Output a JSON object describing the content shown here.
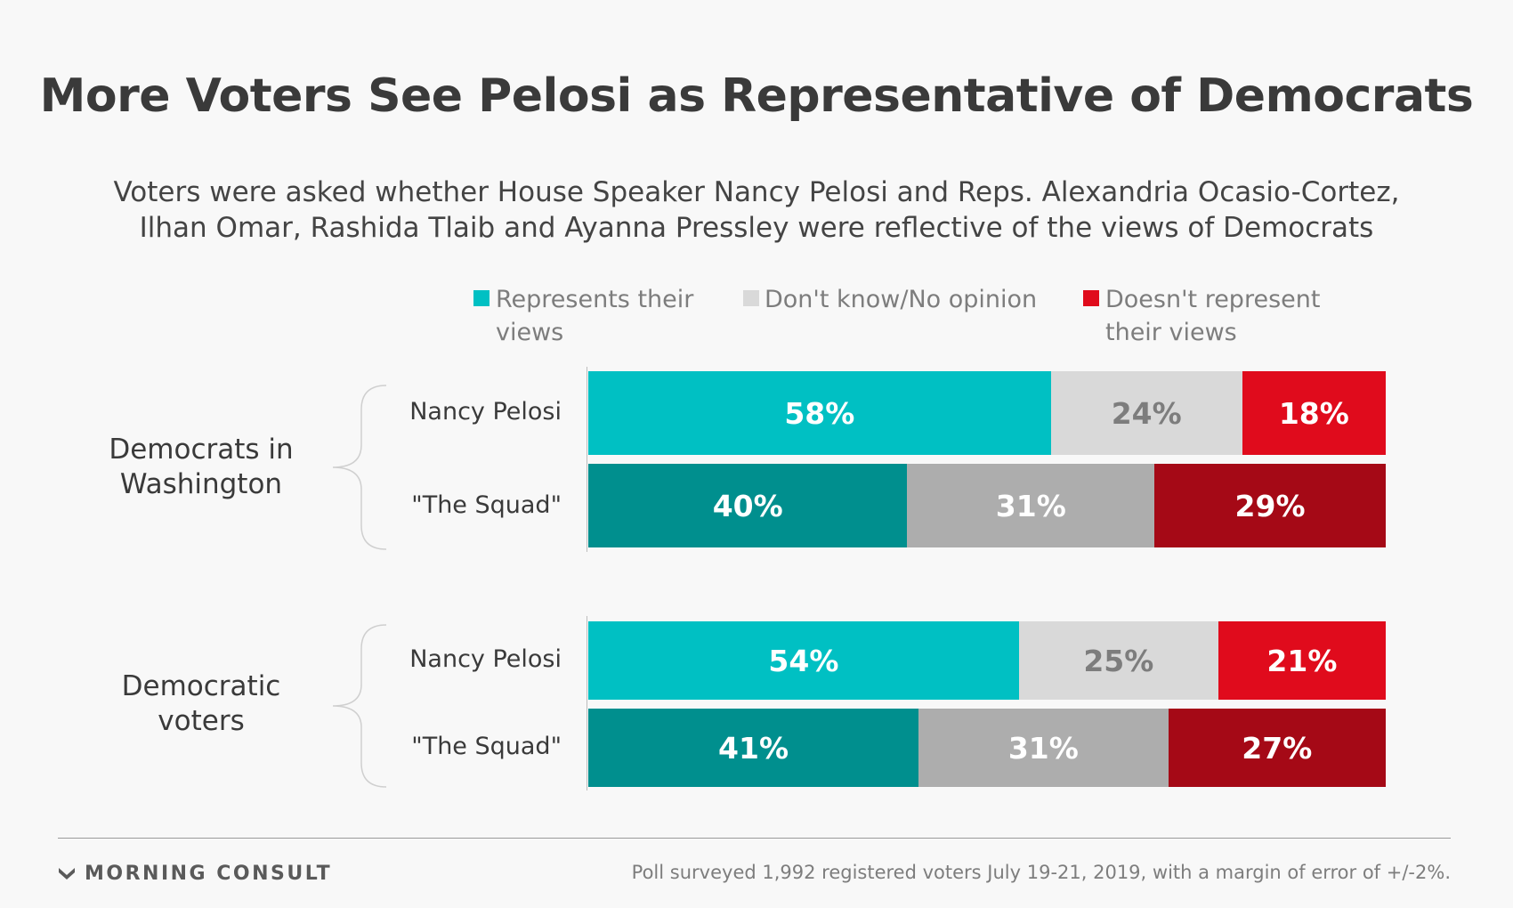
{
  "title": "More Voters See Pelosi as Representative of Democrats",
  "subtitle_lines": [
    "Voters were asked whether House Speaker Nancy Pelosi and Reps. Alexandria Ocasio-Cortez,",
    "Ilhan Omar, Rashida Tlaib and Ayanna Pressley were reflective of the views of Democrats"
  ],
  "legend": [
    {
      "lines": [
        "Represents their",
        "views"
      ],
      "color": "#00c0c3"
    },
    {
      "lines": [
        "Don't know/No opinion"
      ],
      "color": "#d9d9d9"
    },
    {
      "lines": [
        "Doesn't represent",
        "their views"
      ],
      "color": "#e00b1c"
    }
  ],
  "footer": {
    "logo": "MORNING CONSULT",
    "source": "Poll surveyed 1,992 registered voters July 19-21, 2019, with a margin of error of +/-2%."
  },
  "chart_data": {
    "type": "bar",
    "orientation": "horizontal",
    "stacked": true,
    "unit": "%",
    "series_names": [
      "Represents their views",
      "Don't know/No opinion",
      "Doesn't represent their views"
    ],
    "groups": [
      {
        "label_lines": [
          "Democrats in",
          "Washington"
        ],
        "rows": [
          {
            "label": "Nancy Pelosi",
            "values": [
              58,
              24,
              18
            ],
            "labels": [
              "58%",
              "24%",
              "18%"
            ],
            "colors": [
              "#00c0c3",
              "#d9d9d9",
              "#e00b1c"
            ]
          },
          {
            "label": "\"The Squad\"",
            "values": [
              40,
              31,
              29
            ],
            "labels": [
              "40%",
              "31%",
              "29%"
            ],
            "colors": [
              "#008f8e",
              "#adadad",
              "#a50916"
            ]
          }
        ]
      },
      {
        "label_lines": [
          "Democratic",
          "voters"
        ],
        "rows": [
          {
            "label": "Nancy Pelosi",
            "values": [
              54,
              25,
              21
            ],
            "labels": [
              "54%",
              "25%",
              "21%"
            ],
            "colors": [
              "#00c0c3",
              "#d9d9d9",
              "#e00b1c"
            ]
          },
          {
            "label": "\"The Squad\"",
            "values": [
              41,
              31,
              27
            ],
            "labels": [
              "41%",
              "31%",
              "27%"
            ],
            "colors": [
              "#008f8e",
              "#adadad",
              "#a50916"
            ]
          }
        ]
      }
    ]
  }
}
